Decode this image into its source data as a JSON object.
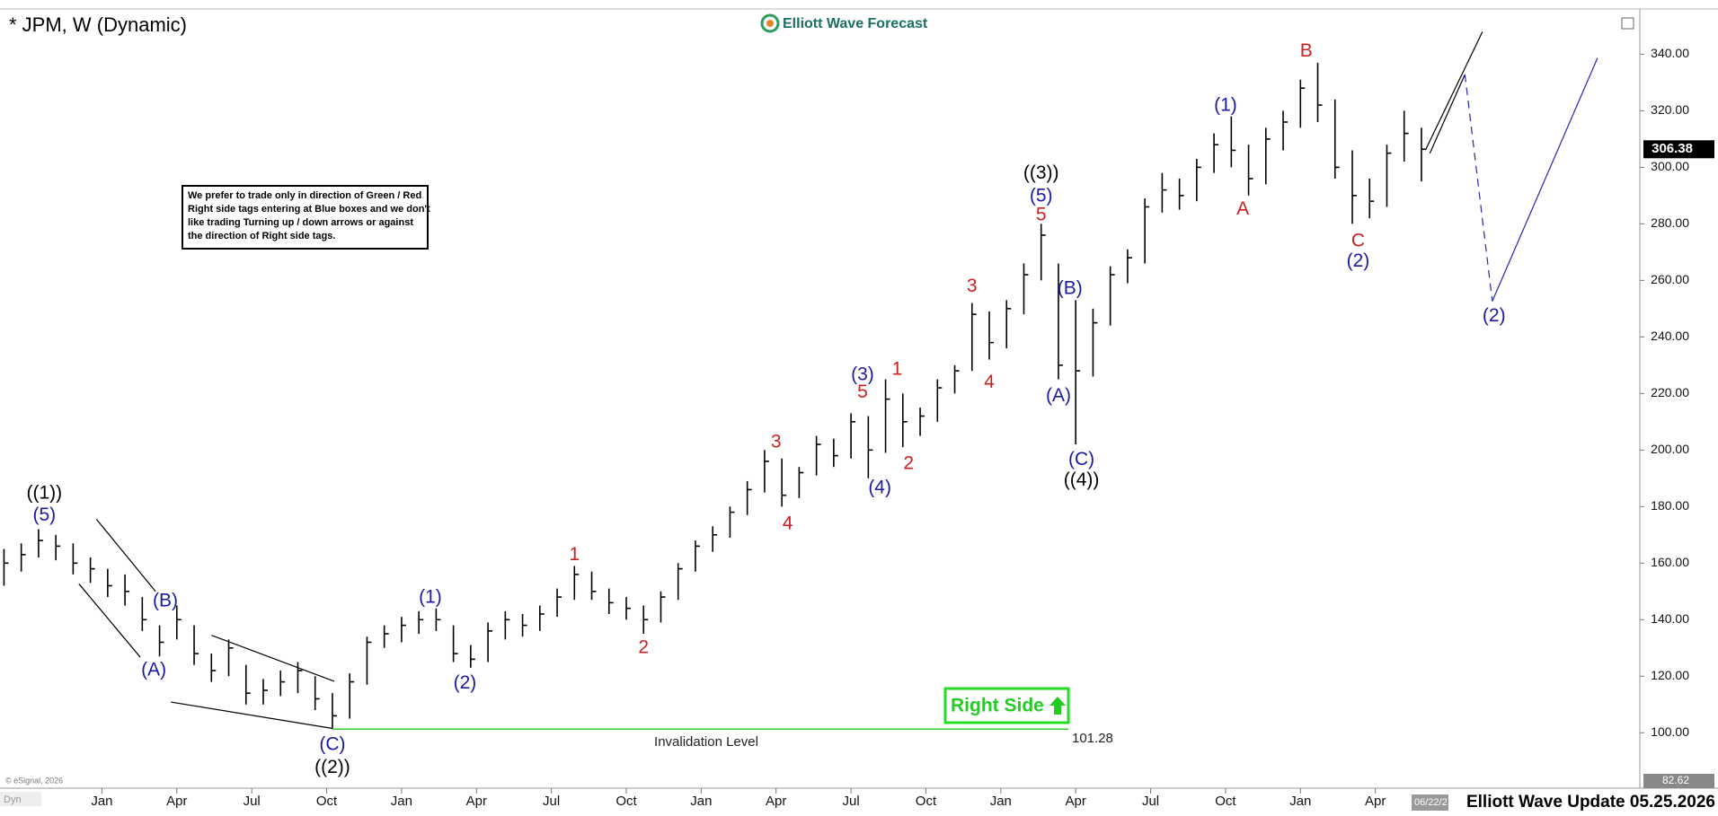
{
  "header": {
    "logo": "Elliott Wave Forecast"
  },
  "note": [
    "We prefer to trade only in direction of Green / Red",
    "Right side tags entering at Blue boxes and we don't",
    "like trading Turning up / down arrows or against",
    "the direction of Right side tags."
  ],
  "tag": "Right Side",
  "footer": {
    "update": "Elliott Wave Update 05.25.2026",
    "copyright": "© eSignal, 2026",
    "date_box": "06/22/2",
    "dyn": "Dyn"
  },
  "chart_data": {
    "type": "ohlc",
    "title": "* JPM, W (Dynamic)",
    "color": "#000000",
    "x": [
      0,
      3,
      6,
      9,
      12,
      15,
      18,
      21,
      24,
      27,
      30,
      33,
      36,
      39,
      42,
      45,
      48,
      51,
      54,
      57,
      60,
      63,
      66,
      69,
      72,
      75,
      78,
      81,
      84,
      87,
      90,
      93,
      96,
      99,
      102,
      105,
      108,
      111,
      114,
      117,
      120,
      123,
      126,
      129,
      132,
      135,
      138,
      141,
      144,
      147,
      150,
      153,
      156,
      159,
      162,
      165,
      168,
      171,
      174,
      177,
      180,
      183,
      186,
      189,
      192,
      195,
      198,
      201,
      204,
      207,
      210,
      213,
      216,
      219,
      222,
      225,
      228,
      231,
      234,
      237,
      240,
      243,
      246
    ],
    "high": [
      165,
      167,
      172,
      170,
      167,
      162,
      158,
      156,
      148,
      138,
      145,
      138,
      128,
      133,
      124,
      119,
      122,
      125,
      120,
      114,
      121,
      134,
      138,
      141,
      143,
      144,
      138,
      131,
      139,
      143,
      142,
      145,
      151,
      159,
      157,
      151,
      148,
      145,
      150,
      160,
      168,
      173,
      180,
      189,
      200,
      197,
      194,
      205,
      204,
      213,
      212,
      225,
      220,
      215,
      225,
      230,
      252,
      249,
      253,
      266,
      280,
      266,
      253,
      250,
      265,
      271,
      289,
      298,
      296,
      303,
      312,
      318,
      308,
      314,
      320,
      331,
      337,
      324,
      306,
      296,
      308,
      320,
      314
    ],
    "low": [
      152,
      157,
      162,
      161,
      156,
      153,
      148,
      145,
      136,
      127,
      133,
      124,
      118,
      120,
      110,
      110,
      113,
      114,
      108,
      101.28,
      105,
      117,
      130,
      132,
      135,
      136,
      125,
      123,
      125,
      133,
      134,
      136,
      141,
      147,
      147,
      142,
      140,
      135,
      139,
      147,
      157,
      164,
      169,
      177,
      185,
      180,
      183,
      191,
      194,
      197,
      190,
      199,
      201,
      205,
      210,
      220,
      228,
      232,
      236,
      248,
      260,
      225,
      202,
      226,
      244,
      259,
      266,
      284,
      285,
      288,
      298,
      300,
      290,
      294,
      306,
      314,
      316,
      296,
      280,
      282,
      286,
      302,
      295
    ],
    "close": [
      160,
      163,
      168,
      166,
      160,
      158,
      152,
      150,
      140,
      132,
      140,
      128,
      122,
      130,
      114,
      115,
      118,
      122,
      112,
      106,
      118,
      132,
      135,
      138,
      140,
      140,
      128,
      126,
      136,
      140,
      138,
      142,
      148,
      156,
      150,
      146,
      144,
      140,
      148,
      158,
      166,
      170,
      178,
      186,
      196,
      184,
      192,
      202,
      198,
      210,
      200,
      218,
      210,
      212,
      222,
      228,
      248,
      238,
      250,
      262,
      276,
      230,
      228,
      245,
      262,
      268,
      286,
      292,
      290,
      300,
      308,
      306,
      296,
      310,
      316,
      328,
      322,
      300,
      290,
      288,
      305,
      312,
      306.38
    ],
    "xlim": [
      -0.69,
      283.9
    ],
    "ylim": [
      82.62,
      356
    ],
    "xticks": [
      {
        "value": 17,
        "label": "Jan"
      },
      {
        "value": 30,
        "label": "Apr"
      },
      {
        "value": 43,
        "label": "Jul"
      },
      {
        "value": 56,
        "label": "Oct"
      },
      {
        "value": 69,
        "label": "Jan"
      },
      {
        "value": 82,
        "label": "Apr"
      },
      {
        "value": 95,
        "label": "Jul"
      },
      {
        "value": 108,
        "label": "Oct"
      },
      {
        "value": 121,
        "label": "Jan"
      },
      {
        "value": 134,
        "label": "Apr"
      },
      {
        "value": 147,
        "label": "Jul"
      },
      {
        "value": 160,
        "label": "Oct"
      },
      {
        "value": 173,
        "label": "Jan"
      },
      {
        "value": 186,
        "label": "Apr"
      },
      {
        "value": 199,
        "label": "Jul"
      },
      {
        "value": 212,
        "label": "Oct"
      },
      {
        "value": 225,
        "label": "Jan"
      },
      {
        "value": 238,
        "label": "Apr"
      }
    ],
    "yticks": [
      {
        "value": 100,
        "label": "100.00"
      },
      {
        "value": 120,
        "label": "120.00"
      },
      {
        "value": 140,
        "label": "140.00"
      },
      {
        "value": 160,
        "label": "160.00"
      },
      {
        "value": 180,
        "label": "180.00"
      },
      {
        "value": 200,
        "label": "200.00"
      },
      {
        "value": 220,
        "label": "220.00"
      },
      {
        "value": 240,
        "label": "240.00"
      },
      {
        "value": 260,
        "label": "260.00"
      },
      {
        "value": 280,
        "label": "280.00"
      },
      {
        "value": 300,
        "label": "300.00"
      },
      {
        "value": 320,
        "label": "320.00"
      },
      {
        "value": 340,
        "label": "340.00"
      }
    ],
    "invalidation_label": "Invalidation Level",
    "invalidation_color": "#33cc33",
    "annotations": [
      {
        "text": "((1))",
        "color": "#000000",
        "x": 7,
        "y": 184.5
      },
      {
        "text": "(5)",
        "color": "#1a1aa6",
        "x": 7,
        "y": 176.8
      },
      {
        "text": "(B)",
        "color": "#1a1aa6",
        "x": 28,
        "y": 146.5
      },
      {
        "text": "(A)",
        "color": "#1a1aa6",
        "x": 26,
        "y": 122
      },
      {
        "text": "(C)",
        "color": "#1a1aa6",
        "x": 57,
        "y": 95.7
      },
      {
        "text": "((2))",
        "color": "#000000",
        "x": 57,
        "y": 87.6
      },
      {
        "text": "(1)",
        "color": "#1a1aa6",
        "x": 74,
        "y": 147.7
      },
      {
        "text": "(2)",
        "color": "#1a1aa6",
        "x": 80,
        "y": 117.4
      },
      {
        "text": "1",
        "color": "#cc1f1f",
        "x": 99,
        "y": 162.8
      },
      {
        "text": "2",
        "color": "#cc1f1f",
        "x": 111,
        "y": 129.9
      },
      {
        "text": "3",
        "color": "#cc1f1f",
        "x": 134,
        "y": 202.7
      },
      {
        "text": "4",
        "color": "#cc1f1f",
        "x": 136,
        "y": 173.7
      },
      {
        "text": "(3)",
        "color": "#1a1aa6",
        "x": 149,
        "y": 226.4
      },
      {
        "text": "5",
        "color": "#cc1f1f",
        "x": 149,
        "y": 220.2
      },
      {
        "text": "(4)",
        "color": "#1a1aa6",
        "x": 152,
        "y": 186.5
      },
      {
        "text": "1",
        "color": "#cc1f1f",
        "x": 155,
        "y": 228.3
      },
      {
        "text": "2",
        "color": "#cc1f1f",
        "x": 157,
        "y": 195
      },
      {
        "text": "3",
        "color": "#cc1f1f",
        "x": 168,
        "y": 257.8
      },
      {
        "text": "4",
        "color": "#cc1f1f",
        "x": 171,
        "y": 223.7
      },
      {
        "text": "((3))",
        "color": "#000000",
        "x": 180,
        "y": 297.7
      },
      {
        "text": "(5)",
        "color": "#1a1aa6",
        "x": 180,
        "y": 289.6
      },
      {
        "text": "5",
        "color": "#cc1f1f",
        "x": 180,
        "y": 283
      },
      {
        "text": "(B)",
        "color": "#1a1aa6",
        "x": 185,
        "y": 257
      },
      {
        "text": "(A)",
        "color": "#1a1aa6",
        "x": 183,
        "y": 219
      },
      {
        "text": "(C)",
        "color": "#1a1aa6",
        "x": 187,
        "y": 196.5
      },
      {
        "text": "((4))",
        "color": "#000000",
        "x": 187,
        "y": 189.2
      },
      {
        "text": "(1)",
        "color": "#1a1aa6",
        "x": 212,
        "y": 321.8
      },
      {
        "text": "A",
        "color": "#cc1f1f",
        "x": 215,
        "y": 285
      },
      {
        "text": "B",
        "color": "#cc1f1f",
        "x": 226,
        "y": 341
      },
      {
        "text": "C",
        "color": "#cc1f1f",
        "x": 235,
        "y": 273.7
      },
      {
        "text": "(2)",
        "color": "#1a1aa6",
        "x": 235,
        "y": 266.7
      },
      {
        "text": "(2)",
        "color": "#1a1aa6",
        "x": 258.6,
        "y": 247.3
      }
    ]
  }
}
